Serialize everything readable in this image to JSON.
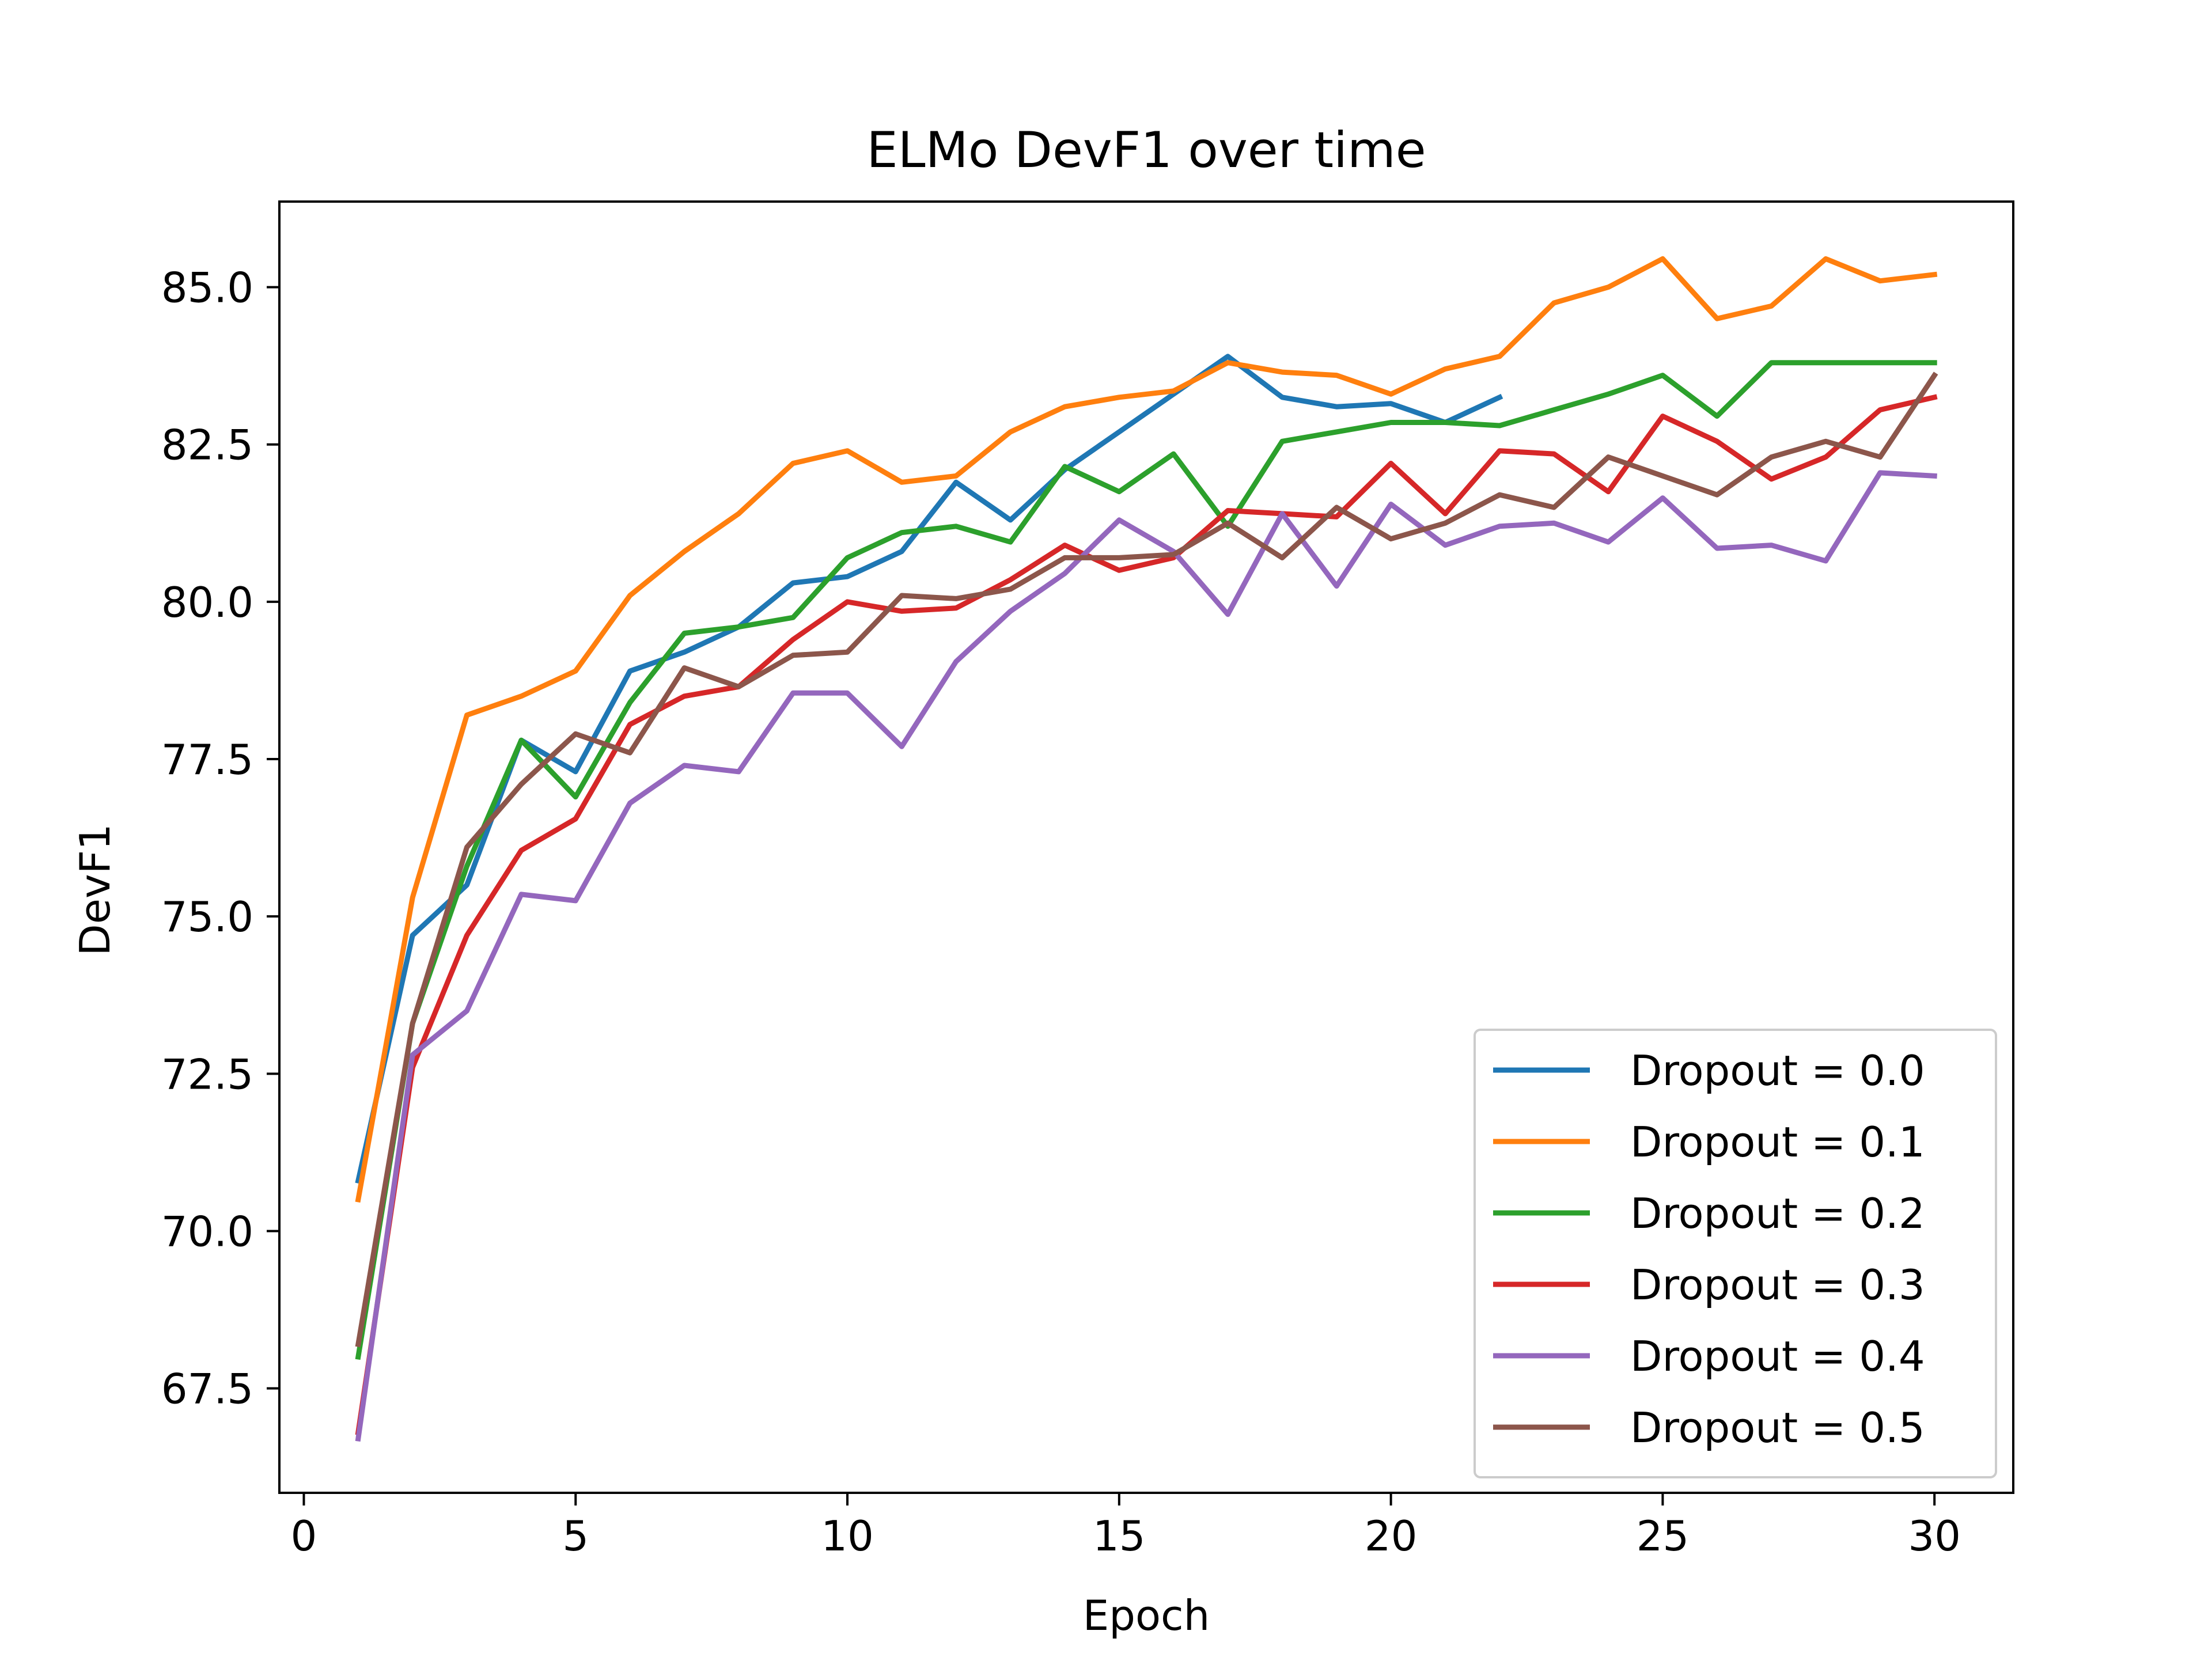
{
  "chart_data": {
    "type": "line",
    "title": "ELMo DevF1 over time",
    "xlabel": "Epoch",
    "ylabel": "DevF1",
    "xlim": [
      -0.45,
      31.45
    ],
    "ylim": [
      65.84,
      86.36
    ],
    "xticks": [
      0,
      5,
      10,
      15,
      20,
      25,
      30
    ],
    "yticks": [
      67.5,
      70.0,
      72.5,
      75.0,
      77.5,
      80.0,
      82.5,
      85.0
    ],
    "xtick_labels": [
      "0",
      "5",
      "10",
      "15",
      "20",
      "25",
      "30"
    ],
    "ytick_labels": [
      "67.5",
      "70.0",
      "72.5",
      "75.0",
      "77.5",
      "80.0",
      "82.5",
      "85.0"
    ],
    "grid": false,
    "legend_position": "lower-right",
    "series": [
      {
        "name": "Dropout = 0.0",
        "color": "#1f77b4",
        "x": [
          1,
          2,
          3,
          4,
          5,
          6,
          7,
          8,
          9,
          10,
          11,
          12,
          13,
          14,
          15,
          16,
          17,
          18,
          19,
          20,
          21,
          22
        ],
        "y": [
          70.8,
          74.7,
          75.5,
          77.8,
          77.3,
          78.9,
          79.2,
          79.6,
          80.3,
          80.4,
          80.8,
          81.9,
          81.3,
          82.1,
          82.7,
          83.3,
          83.9,
          83.25,
          83.1,
          83.15,
          82.85,
          83.25
        ]
      },
      {
        "name": "Dropout = 0.1",
        "color": "#ff7f0e",
        "x": [
          1,
          2,
          3,
          4,
          5,
          6,
          7,
          8,
          9,
          10,
          11,
          12,
          13,
          14,
          15,
          16,
          17,
          18,
          19,
          20,
          21,
          22,
          23,
          24,
          25,
          26,
          27,
          28,
          29,
          30
        ],
        "y": [
          70.5,
          75.3,
          78.2,
          78.5,
          78.9,
          80.1,
          80.8,
          81.4,
          82.2,
          82.4,
          81.9,
          82.0,
          82.7,
          83.1,
          83.25,
          83.35,
          83.8,
          83.65,
          83.6,
          83.3,
          83.7,
          83.9,
          84.75,
          85.0,
          85.45,
          84.5,
          84.7,
          85.45,
          85.1,
          85.2
        ]
      },
      {
        "name": "Dropout = 0.2",
        "color": "#2ca02c",
        "x": [
          1,
          2,
          3,
          4,
          5,
          6,
          7,
          8,
          9,
          10,
          11,
          12,
          13,
          14,
          15,
          16,
          17,
          18,
          19,
          20,
          21,
          22,
          23,
          24,
          25,
          26,
          27,
          28,
          29,
          30
        ],
        "y": [
          68.0,
          73.3,
          75.8,
          77.8,
          76.9,
          78.4,
          79.5,
          79.6,
          79.75,
          80.7,
          81.1,
          81.2,
          80.95,
          82.15,
          81.75,
          82.35,
          81.2,
          82.55,
          82.7,
          82.85,
          82.85,
          82.8,
          83.05,
          83.3,
          83.6,
          82.95,
          83.8,
          83.8,
          83.8,
          83.8
        ]
      },
      {
        "name": "Dropout = 0.3",
        "color": "#d62728",
        "x": [
          1,
          2,
          3,
          4,
          5,
          6,
          7,
          8,
          9,
          10,
          11,
          12,
          13,
          14,
          15,
          16,
          17,
          18,
          19,
          20,
          21,
          22,
          23,
          24,
          25,
          26,
          27,
          28,
          29,
          30
        ],
        "y": [
          66.8,
          72.6,
          74.7,
          76.05,
          76.55,
          78.05,
          78.5,
          78.65,
          79.4,
          80.0,
          79.85,
          79.9,
          80.35,
          80.9,
          80.5,
          80.7,
          81.45,
          81.4,
          81.35,
          82.2,
          81.4,
          82.4,
          82.35,
          81.75,
          82.95,
          82.55,
          81.95,
          82.3,
          83.05,
          83.25
        ]
      },
      {
        "name": "Dropout = 0.4",
        "color": "#9467bd",
        "x": [
          1,
          2,
          3,
          4,
          5,
          6,
          7,
          8,
          9,
          10,
          11,
          12,
          13,
          14,
          15,
          16,
          17,
          18,
          19,
          20,
          21,
          22,
          23,
          24,
          25,
          26,
          27,
          28,
          29,
          30
        ],
        "y": [
          66.7,
          72.8,
          73.5,
          75.35,
          75.25,
          76.8,
          77.4,
          77.3,
          78.55,
          78.55,
          77.7,
          79.05,
          79.85,
          80.45,
          81.3,
          80.8,
          79.8,
          81.4,
          80.25,
          81.55,
          80.9,
          81.2,
          81.25,
          80.95,
          81.65,
          80.85,
          80.9,
          80.65,
          82.05,
          82.0
        ]
      },
      {
        "name": "Dropout = 0.5",
        "color": "#8c564b",
        "x": [
          1,
          2,
          3,
          4,
          5,
          6,
          7,
          8,
          9,
          10,
          11,
          12,
          13,
          14,
          15,
          16,
          17,
          18,
          19,
          20,
          21,
          22,
          23,
          24,
          25,
          26,
          27,
          28,
          29,
          30
        ],
        "y": [
          68.2,
          73.3,
          76.1,
          77.1,
          77.9,
          77.6,
          78.95,
          78.65,
          79.15,
          79.2,
          80.1,
          80.05,
          80.2,
          80.7,
          80.7,
          80.75,
          81.25,
          80.7,
          81.5,
          81.0,
          81.25,
          81.7,
          81.5,
          82.3,
          82.0,
          81.7,
          82.3,
          82.55,
          82.3,
          83.6
        ]
      }
    ]
  }
}
